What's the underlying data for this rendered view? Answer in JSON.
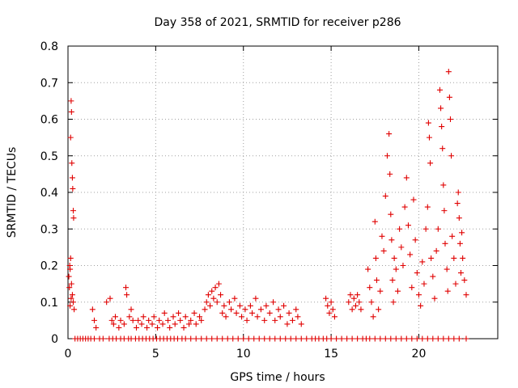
{
  "chart_data": {
    "type": "scatter",
    "title": "Day 358 of 2021, SRMTID for receiver p286",
    "xlabel": "GPS time / hours",
    "ylabel": "SRMTID / TECUs",
    "xlim": [
      0,
      24.5
    ],
    "ylim": [
      0,
      0.8
    ],
    "xticks": [
      0,
      5,
      10,
      15,
      20
    ],
    "xtick_labels": [
      "0",
      "5",
      "10",
      "15",
      "20"
    ],
    "yticks": [
      0,
      0.1,
      0.2,
      0.3,
      0.4,
      0.5,
      0.6,
      0.7,
      0.8
    ],
    "ytick_labels": [
      "0",
      "0.1",
      "0.2",
      "0.3",
      "0.4",
      "0.5",
      "0.6",
      "0.7",
      "0.8"
    ],
    "grid": true,
    "marker": "+",
    "color": "#e00000",
    "series": [
      {
        "name": "SRMTID",
        "points": [
          [
            0.05,
            0.17
          ],
          [
            0.08,
            0.14
          ],
          [
            0.1,
            0.2
          ],
          [
            0.12,
            0.19
          ],
          [
            0.15,
            0.55
          ],
          [
            0.18,
            0.65
          ],
          [
            0.2,
            0.62
          ],
          [
            0.22,
            0.48
          ],
          [
            0.25,
            0.44
          ],
          [
            0.27,
            0.41
          ],
          [
            0.3,
            0.35
          ],
          [
            0.32,
            0.33
          ],
          [
            0.15,
            0.22
          ],
          [
            0.2,
            0.15
          ],
          [
            0.25,
            0.12
          ],
          [
            0.3,
            0.1
          ],
          [
            0.35,
            0.08
          ],
          [
            0.12,
            0.09
          ],
          [
            0.18,
            0.11
          ],
          [
            1.4,
            0.08
          ],
          [
            1.5,
            0.05
          ],
          [
            1.6,
            0.03
          ],
          [
            2.2,
            0.1
          ],
          [
            2.4,
            0.11
          ],
          [
            2.5,
            0.05
          ],
          [
            2.6,
            0.04
          ],
          [
            2.7,
            0.06
          ],
          [
            2.9,
            0.03
          ],
          [
            3.0,
            0.05
          ],
          [
            3.2,
            0.04
          ],
          [
            3.3,
            0.14
          ],
          [
            3.35,
            0.12
          ],
          [
            3.5,
            0.06
          ],
          [
            3.6,
            0.08
          ],
          [
            3.7,
            0.05
          ],
          [
            3.9,
            0.03
          ],
          [
            4.0,
            0.05
          ],
          [
            4.2,
            0.04
          ],
          [
            4.3,
            0.06
          ],
          [
            4.5,
            0.03
          ],
          [
            4.6,
            0.05
          ],
          [
            4.8,
            0.04
          ],
          [
            4.9,
            0.06
          ],
          [
            5.1,
            0.03
          ],
          [
            5.2,
            0.05
          ],
          [
            5.4,
            0.04
          ],
          [
            5.5,
            0.07
          ],
          [
            5.7,
            0.05
          ],
          [
            5.8,
            0.03
          ],
          [
            6.0,
            0.06
          ],
          [
            6.1,
            0.04
          ],
          [
            6.3,
            0.07
          ],
          [
            6.4,
            0.05
          ],
          [
            6.6,
            0.03
          ],
          [
            6.7,
            0.06
          ],
          [
            6.9,
            0.04
          ],
          [
            7.0,
            0.05
          ],
          [
            7.2,
            0.07
          ],
          [
            7.3,
            0.04
          ],
          [
            7.5,
            0.06
          ],
          [
            7.6,
            0.05
          ],
          [
            7.8,
            0.08
          ],
          [
            7.9,
            0.1
          ],
          [
            8.0,
            0.12
          ],
          [
            8.1,
            0.09
          ],
          [
            8.2,
            0.13
          ],
          [
            8.3,
            0.11
          ],
          [
            8.4,
            0.14
          ],
          [
            8.5,
            0.1
          ],
          [
            8.6,
            0.15
          ],
          [
            8.7,
            0.12
          ],
          [
            8.8,
            0.07
          ],
          [
            8.9,
            0.09
          ],
          [
            9.0,
            0.06
          ],
          [
            9.2,
            0.1
          ],
          [
            9.3,
            0.08
          ],
          [
            9.5,
            0.11
          ],
          [
            9.6,
            0.07
          ],
          [
            9.8,
            0.09
          ],
          [
            9.9,
            0.06
          ],
          [
            10.1,
            0.08
          ],
          [
            10.2,
            0.05
          ],
          [
            10.4,
            0.09
          ],
          [
            10.5,
            0.07
          ],
          [
            10.7,
            0.11
          ],
          [
            10.8,
            0.06
          ],
          [
            11.0,
            0.08
          ],
          [
            11.2,
            0.05
          ],
          [
            11.3,
            0.09
          ],
          [
            11.5,
            0.07
          ],
          [
            11.7,
            0.1
          ],
          [
            11.8,
            0.05
          ],
          [
            12.0,
            0.08
          ],
          [
            12.1,
            0.06
          ],
          [
            12.3,
            0.09
          ],
          [
            12.5,
            0.04
          ],
          [
            12.6,
            0.07
          ],
          [
            12.8,
            0.05
          ],
          [
            13.0,
            0.08
          ],
          [
            13.1,
            0.06
          ],
          [
            13.3,
            0.04
          ],
          [
            14.7,
            0.11
          ],
          [
            14.8,
            0.09
          ],
          [
            14.9,
            0.07
          ],
          [
            15.0,
            0.1
          ],
          [
            15.1,
            0.08
          ],
          [
            15.2,
            0.06
          ],
          [
            16.0,
            0.1
          ],
          [
            16.1,
            0.12
          ],
          [
            16.2,
            0.08
          ],
          [
            16.3,
            0.11
          ],
          [
            16.4,
            0.09
          ],
          [
            16.5,
            0.12
          ],
          [
            16.6,
            0.1
          ],
          [
            16.7,
            0.08
          ],
          [
            17.1,
            0.19
          ],
          [
            17.2,
            0.14
          ],
          [
            17.3,
            0.1
          ],
          [
            17.4,
            0.06
          ],
          [
            17.5,
            0.32
          ],
          [
            17.55,
            0.22
          ],
          [
            17.6,
            0.16
          ],
          [
            17.7,
            0.08
          ],
          [
            17.8,
            0.13
          ],
          [
            17.9,
            0.28
          ],
          [
            18.0,
            0.24
          ],
          [
            18.1,
            0.39
          ],
          [
            18.2,
            0.5
          ],
          [
            18.3,
            0.56
          ],
          [
            18.35,
            0.45
          ],
          [
            18.4,
            0.34
          ],
          [
            18.45,
            0.27
          ],
          [
            18.5,
            0.16
          ],
          [
            18.55,
            0.1
          ],
          [
            18.6,
            0.22
          ],
          [
            18.7,
            0.19
          ],
          [
            18.8,
            0.13
          ],
          [
            18.9,
            0.3
          ],
          [
            19.0,
            0.25
          ],
          [
            19.1,
            0.2
          ],
          [
            19.2,
            0.36
          ],
          [
            19.3,
            0.44
          ],
          [
            19.4,
            0.31
          ],
          [
            19.5,
            0.23
          ],
          [
            19.6,
            0.14
          ],
          [
            19.7,
            0.38
          ],
          [
            19.8,
            0.27
          ],
          [
            19.9,
            0.18
          ],
          [
            20.0,
            0.12
          ],
          [
            20.1,
            0.09
          ],
          [
            20.2,
            0.21
          ],
          [
            20.3,
            0.15
          ],
          [
            20.4,
            0.3
          ],
          [
            20.5,
            0.36
          ],
          [
            20.55,
            0.59
          ],
          [
            20.6,
            0.55
          ],
          [
            20.65,
            0.48
          ],
          [
            20.7,
            0.22
          ],
          [
            20.8,
            0.17
          ],
          [
            20.9,
            0.11
          ],
          [
            21.0,
            0.24
          ],
          [
            21.1,
            0.3
          ],
          [
            21.2,
            0.68
          ],
          [
            21.25,
            0.63
          ],
          [
            21.3,
            0.58
          ],
          [
            21.35,
            0.52
          ],
          [
            21.4,
            0.42
          ],
          [
            21.45,
            0.35
          ],
          [
            21.5,
            0.26
          ],
          [
            21.6,
            0.19
          ],
          [
            21.65,
            0.13
          ],
          [
            21.7,
            0.73
          ],
          [
            21.75,
            0.66
          ],
          [
            21.8,
            0.6
          ],
          [
            21.85,
            0.5
          ],
          [
            21.9,
            0.28
          ],
          [
            22.0,
            0.22
          ],
          [
            22.1,
            0.15
          ],
          [
            22.2,
            0.37
          ],
          [
            22.25,
            0.4
          ],
          [
            22.3,
            0.33
          ],
          [
            22.35,
            0.26
          ],
          [
            22.4,
            0.18
          ],
          [
            22.45,
            0.29
          ],
          [
            22.5,
            0.22
          ],
          [
            22.6,
            0.16
          ],
          [
            22.7,
            0.12
          ]
        ]
      }
    ],
    "zero_points_x": [
      0.4,
      0.55,
      0.7,
      0.85,
      1.0,
      1.15,
      1.3,
      1.5,
      1.8,
      2.0,
      2.35,
      2.55,
      2.75,
      3.0,
      3.2,
      3.45,
      3.6,
      3.85,
      4.05,
      4.25,
      4.45,
      4.65,
      4.85,
      5.05,
      5.25,
      5.45,
      5.65,
      5.85,
      6.05,
      6.25,
      6.5,
      6.7,
      7.0,
      7.3,
      7.6,
      7.9,
      8.2,
      8.5,
      8.8,
      9.1,
      9.4,
      9.7,
      10.0,
      10.3,
      10.6,
      10.9,
      11.2,
      11.5,
      11.8,
      12.1,
      12.4,
      12.7,
      13.0,
      13.3,
      13.6,
      13.9,
      14.1,
      14.3,
      14.55,
      14.75,
      15.0,
      15.3,
      15.6,
      15.9,
      16.2,
      16.5,
      16.8,
      17.0,
      17.2,
      17.5,
      17.8,
      18.1,
      18.4,
      18.7,
      19.0,
      19.3,
      19.6,
      19.9,
      20.2,
      20.5,
      20.8,
      21.1,
      21.4,
      21.7,
      22.0,
      22.3,
      22.7
    ]
  }
}
